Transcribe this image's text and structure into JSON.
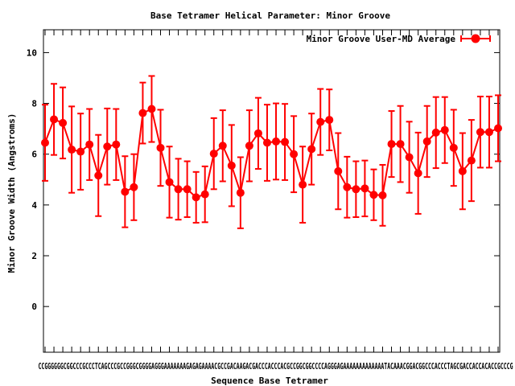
{
  "chart_data": {
    "type": "line",
    "title": "Base Tetramer Helical Parameter: Minor Groove",
    "xlabel": "Sequence Base Tetramer",
    "ylabel": "Minor Groove Width (Angstroms)",
    "ylim": [
      -1.8,
      10.9
    ],
    "y_ticks": [
      0,
      2,
      4,
      6,
      8,
      10
    ],
    "grid": false,
    "legend_position": "top-right",
    "x_tick_text": "CCGGGGGGCGGCCCGCCCTCAGCCCGCCGGGCGGGGAGGGAAAAAAAGAGAGAAAACGCCGACAAGACGACCCACCCACGCCGGCGGCCCCAGGGAGAAAAAAAAAAAAATACAAACGGACGGCCCACCCTAGCGACCACCACACCGCCCG",
    "color": "#ff0000",
    "series": [
      {
        "name": "Minor Groove User-MD Average",
        "values": [
          6.45,
          7.37,
          7.23,
          6.18,
          6.1,
          6.38,
          5.16,
          6.3,
          6.38,
          4.52,
          4.7,
          7.62,
          7.78,
          6.25,
          4.9,
          4.62,
          4.62,
          4.3,
          4.42,
          6.02,
          6.33,
          5.55,
          4.48,
          6.33,
          6.82,
          6.45,
          6.5,
          6.48,
          6.0,
          4.8,
          6.2,
          7.27,
          7.35,
          5.33,
          4.7,
          4.62,
          4.65,
          4.4,
          4.38,
          6.4,
          6.4,
          5.88,
          5.25,
          6.5,
          6.85,
          6.95,
          6.25,
          5.33,
          5.75,
          6.87,
          6.87,
          7.02
        ],
        "error": [
          1.5,
          1.4,
          1.4,
          1.7,
          1.5,
          1.4,
          1.6,
          1.5,
          1.4,
          1.4,
          1.3,
          1.2,
          1.3,
          1.5,
          1.4,
          1.2,
          1.1,
          1.0,
          1.1,
          1.4,
          1.4,
          1.6,
          1.4,
          1.4,
          1.4,
          1.5,
          1.5,
          1.5,
          1.5,
          1.5,
          1.4,
          1.3,
          1.2,
          1.5,
          1.2,
          1.1,
          1.1,
          1.0,
          1.2,
          1.3,
          1.5,
          1.4,
          1.6,
          1.4,
          1.4,
          1.3,
          1.5,
          1.5,
          1.6,
          1.4,
          1.4,
          1.3
        ]
      }
    ]
  }
}
